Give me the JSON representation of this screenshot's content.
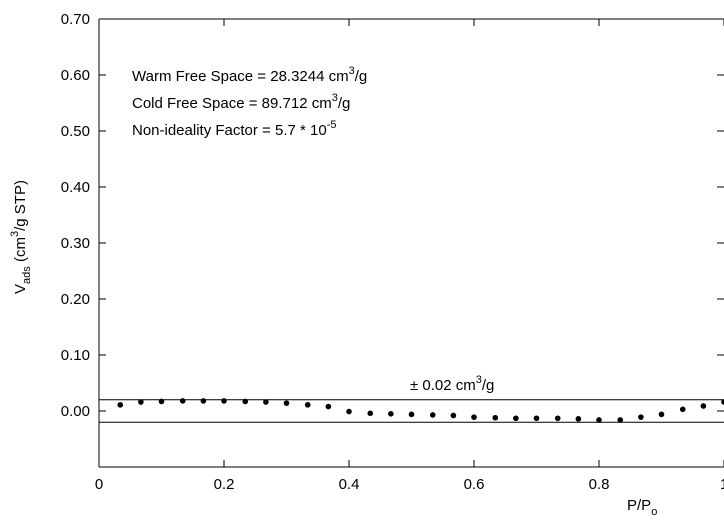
{
  "chart_data": {
    "type": "scatter",
    "title": "",
    "xlabel": "P/P",
    "xlabel_sub": "o",
    "ylabel": {
      "prefix": "V",
      "sub": "ads",
      "mid": " (cm",
      "sup": "3",
      "suffix": "/g STP)"
    },
    "xlim": [
      0,
      1
    ],
    "ylim": [
      -0.1,
      0.7
    ],
    "x_ticks": [
      0,
      0.2,
      0.4,
      0.6,
      0.8,
      1
    ],
    "x_tick_labels": [
      "0",
      "0.2",
      "0.4",
      "0.6",
      "0.8",
      "1"
    ],
    "y_ticks": [
      0.0,
      0.1,
      0.2,
      0.3,
      0.4,
      0.5,
      0.6,
      0.7
    ],
    "y_tick_labels": [
      "0.00",
      "0.10",
      "0.20",
      "0.30",
      "0.40",
      "0.50",
      "0.60",
      "0.70"
    ],
    "grid": false,
    "legend": "none",
    "reference_lines": [
      0.02,
      -0.02
    ],
    "band_label": {
      "prefix": "± 0.02 cm",
      "sup": "3",
      "suffix": "/g"
    },
    "annotations": [
      {
        "text": "Warm Free Space = 28.3244 cm",
        "sup": "3",
        "suffix": "/g"
      },
      {
        "text": "Cold Free Space = 89.712 cm",
        "sup": "3",
        "suffix": "/g"
      },
      {
        "text": "Non-ideality Factor = 5.7 * 10",
        "sup": "-5",
        "suffix": ""
      }
    ],
    "series": [
      {
        "x": [
          0.034,
          0.067,
          0.1,
          0.134,
          0.167,
          0.2,
          0.234,
          0.267,
          0.3,
          0.334,
          0.367,
          0.4,
          0.434,
          0.467,
          0.5,
          0.534,
          0.567,
          0.6,
          0.634,
          0.667,
          0.7,
          0.734,
          0.767,
          0.8,
          0.834,
          0.867,
          0.9,
          0.934,
          0.967,
          1.0
        ],
        "y": [
          0.011,
          0.016,
          0.017,
          0.018,
          0.018,
          0.018,
          0.017,
          0.016,
          0.014,
          0.011,
          0.008,
          -0.001,
          -0.004,
          -0.005,
          -0.006,
          -0.007,
          -0.008,
          -0.011,
          -0.012,
          -0.013,
          -0.013,
          -0.013,
          -0.014,
          -0.016,
          -0.016,
          -0.011,
          -0.006,
          0.003,
          0.009,
          0.016
        ]
      }
    ]
  }
}
